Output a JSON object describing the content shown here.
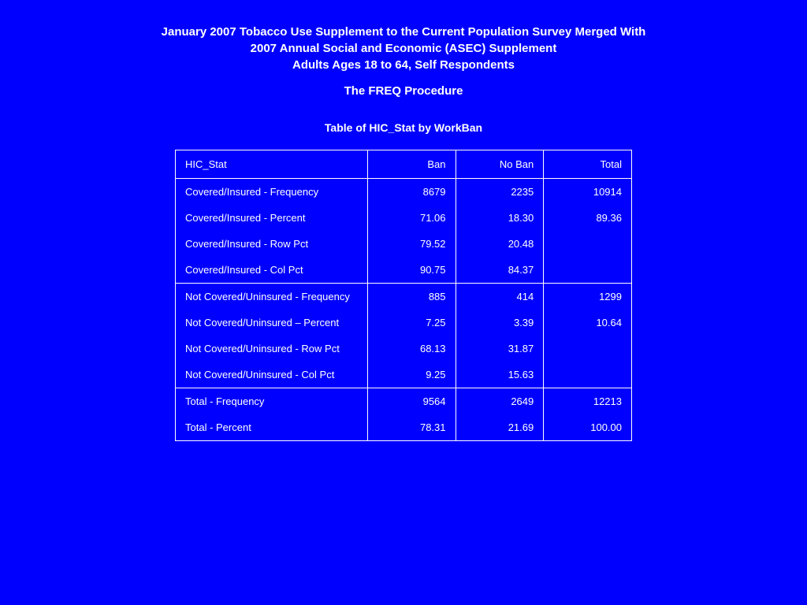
{
  "colors": {
    "background": "#0000ff",
    "text": "#ffffff",
    "border": "#ffffff"
  },
  "typography": {
    "family": "Arial",
    "title_size_pt": 15,
    "body_size_pt": 13,
    "title_weight": "bold"
  },
  "title": {
    "line1": "January 2007 Tobacco Use Supplement to the Current Population Survey Merged With",
    "line2": "2007 Annual Social and Economic (ASEC) Supplement",
    "line3": "Adults Ages 18 to 64, Self Respondents"
  },
  "procedure": "The FREQ Procedure",
  "table": {
    "type": "table",
    "caption": "Table of HIC_Stat by WorkBan",
    "columns": [
      "HIC_Stat",
      "Ban",
      "No Ban",
      "Total"
    ],
    "col_align": [
      "left",
      "right",
      "right",
      "right"
    ],
    "groups": [
      {
        "rows": [
          {
            "label": "Covered/Insured  -  Frequency",
            "ban": "8679",
            "noban": "2235",
            "total": "10914"
          },
          {
            "label": "Covered/Insured  -  Percent",
            "ban": "71.06",
            "noban": "18.30",
            "total": "89.36"
          },
          {
            "label": "Covered/Insured  -  Row Pct",
            "ban": "79.52",
            "noban": "20.48",
            "total": ""
          },
          {
            "label": "Covered/Insured  -  Col Pct",
            "ban": "90.75",
            "noban": "84.37",
            "total": ""
          }
        ]
      },
      {
        "rows": [
          {
            "label": "Not Covered/Uninsured - Frequency",
            "ban": "885",
            "noban": "414",
            "total": "1299"
          },
          {
            "label": "Not Covered/Uninsured – Percent",
            "ban": "7.25",
            "noban": "3.39",
            "total": "10.64"
          },
          {
            "label": "Not Covered/Uninsured - Row Pct",
            "ban": "68.13",
            "noban": "31.87",
            "total": ""
          },
          {
            "label": "Not Covered/Uninsured - Col Pct",
            "ban": "9.25",
            "noban": "15.63",
            "total": ""
          }
        ]
      },
      {
        "rows": [
          {
            "label": "Total -  Frequency",
            "ban": "9564",
            "noban": "2649",
            "total": "12213"
          },
          {
            "label": "Total - Percent",
            "ban": "78.31",
            "noban": "21.69",
            "total": "100.00"
          }
        ]
      }
    ]
  }
}
